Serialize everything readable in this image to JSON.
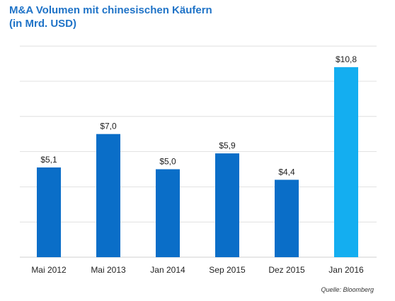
{
  "title_line1": "M&A Volumen mit chinesischen Käufern",
  "title_line2": "(in Mrd. USD)",
  "source": "Quelle: Bloomberg",
  "colors": {
    "title": "#1f73c7",
    "bar": "#0a6ec8",
    "bar_highlight": "#14aef0",
    "grid": "#d9d9d9",
    "label": "#222222"
  },
  "chart_data": {
    "type": "bar",
    "title": "M&A Volumen mit chinesischen Käufern (in Mrd. USD)",
    "categories": [
      "Mai 2012",
      "Mai 2013",
      "Jan 2014",
      "Sep 2015",
      "Dez 2015",
      "Jan 2016"
    ],
    "values": [
      5.1,
      7.0,
      5.0,
      5.9,
      4.4,
      10.8
    ],
    "data_labels": [
      "$5,1",
      "$7,0",
      "$5,0",
      "$5,9",
      "$4,4",
      "$10,8"
    ],
    "highlight_index": 5,
    "xlabel": "",
    "ylabel": "",
    "ylim": [
      0,
      12
    ],
    "grid": true
  }
}
